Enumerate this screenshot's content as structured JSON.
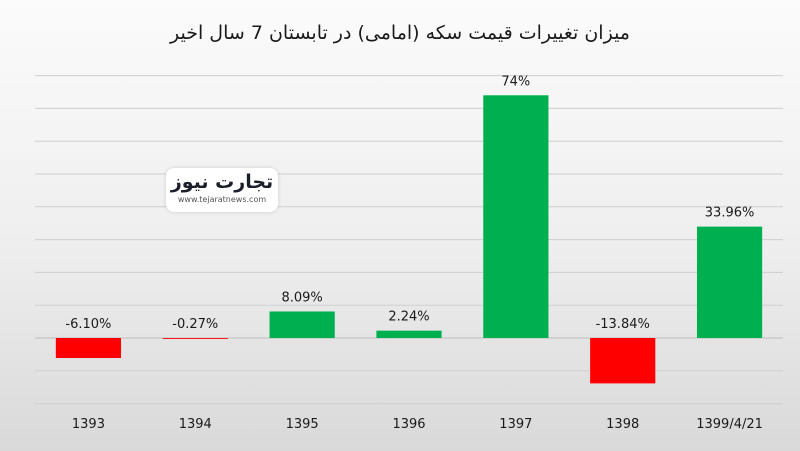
{
  "chart_data": {
    "type": "bar",
    "title": "میزان تغییرات قیمت سکه (امامی) در تابستان 7 سال اخیر",
    "xlabel": "",
    "ylabel": "",
    "categories": [
      "1393",
      "1394",
      "1395",
      "1396",
      "1397",
      "1398",
      "1399/4/21"
    ],
    "values": [
      -6.1,
      -0.27,
      8.09,
      2.24,
      74,
      -13.84,
      33.96
    ],
    "labels": [
      "-6.10%",
      "-0.27%",
      "8.09%",
      "2.24%",
      "74%",
      "-13.84%",
      "33.96%"
    ],
    "ylim": [
      -20,
      80
    ],
    "grid": true,
    "legend": "none",
    "colors": {
      "positive": "#00b050",
      "negative": "#ff0000",
      "grid": "#cfcfcf",
      "text": "#1a1a1a"
    }
  },
  "logo": {
    "text": "تجارت نیوز",
    "subtext": "www.tejaratnews.com"
  }
}
